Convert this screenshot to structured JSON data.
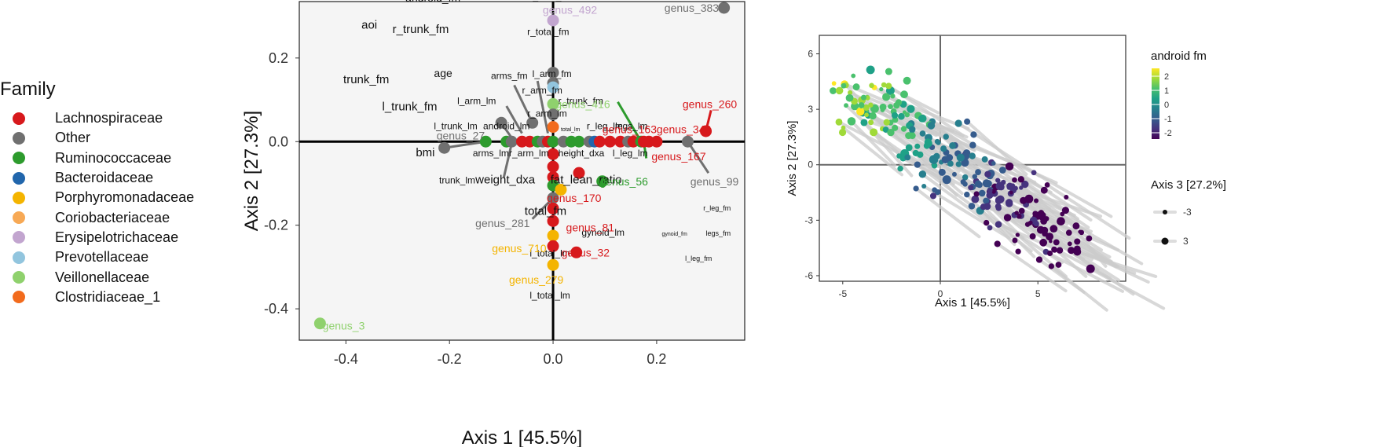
{
  "legend": {
    "title": "Family",
    "items": [
      {
        "label": "Lachnospiraceae",
        "color": "#d7191c"
      },
      {
        "label": "Other",
        "color": "#707070"
      },
      {
        "label": "Ruminococcaceae",
        "color": "#2d9b2d"
      },
      {
        "label": "Bacteroidaceae",
        "color": "#2166ac"
      },
      {
        "label": "Porphyromonadaceae",
        "color": "#f4b400"
      },
      {
        "label": "Coriobacteriaceae",
        "color": "#f7a955"
      },
      {
        "label": "Erysipelotrichaceae",
        "color": "#c2a5cf"
      },
      {
        "label": "Prevotellaceae",
        "color": "#92c5de"
      },
      {
        "label": "Veillonellaceae",
        "color": "#8fd16d"
      },
      {
        "label": "Clostridiaceae_1",
        "color": "#f26b1d"
      }
    ]
  },
  "chart_data": [
    {
      "type": "scatter",
      "xlabel": "Axis 1 [45.5%]",
      "ylabel": "Axis 2 [27.3%]",
      "xlim": [
        -0.49,
        0.37
      ],
      "ylim": [
        -0.475,
        0.335
      ],
      "xticks": [
        -0.4,
        -0.2,
        0.0,
        0.2
      ],
      "xtick_labels": [
        "-0.4",
        "-0.2",
        "0.0",
        "0.2"
      ],
      "yticks": [
        -0.4,
        -0.2,
        0.0,
        0.2
      ],
      "ytick_labels": [
        "-0.4",
        "-0.2",
        "0.0",
        "0.2"
      ],
      "grid": false,
      "points": [
        {
          "x": -0.45,
          "y": -0.435,
          "fam": "Veillonellaceae",
          "label": "genus_3",
          "lx": -0.445,
          "ly": -0.44
        },
        {
          "x": 0.33,
          "y": 0.32,
          "fam": "Other",
          "label": "genus_383",
          "lx": 0.215,
          "ly": 0.32
        },
        {
          "x": 0.0,
          "y": 0.29,
          "fam": "Erysipelotrichaceae",
          "label": "genus_492",
          "lx": -0.02,
          "ly": 0.315
        },
        {
          "x": 0.295,
          "y": 0.025,
          "fam": "Lachnospiraceae",
          "label": "genus_260",
          "lx": 0.25,
          "ly": 0.09
        },
        {
          "x": 0.26,
          "y": 0.0,
          "fam": "Other",
          "label": "genus_99",
          "lx": 0.265,
          "ly": -0.095
        },
        {
          "x": -0.21,
          "y": -0.015,
          "fam": "Other",
          "label": "genus_27",
          "lx": -0.225,
          "ly": 0.015
        },
        {
          "x": 0.0,
          "y": -0.135,
          "fam": "Other",
          "label": "genus_281",
          "lx": -0.15,
          "ly": -0.195
        },
        {
          "x": 0.0,
          "y": -0.295,
          "fam": "Porphyromonadaceae",
          "label": "genus_279",
          "lx": -0.085,
          "ly": -0.33
        },
        {
          "x": 0.0,
          "y": -0.225,
          "fam": "Porphyromonadaceae",
          "label": "genus_710",
          "lx": -0.118,
          "ly": -0.255
        },
        {
          "x": 0.045,
          "y": -0.265,
          "fam": "Lachnospiraceae",
          "label": "genus_32",
          "lx": 0.016,
          "ly": -0.265
        },
        {
          "x": 0.0,
          "y": -0.19,
          "fam": "Lachnospiraceae",
          "label": "genus_81",
          "lx": 0.025,
          "ly": -0.205
        },
        {
          "x": 0.05,
          "y": -0.075,
          "fam": "Lachnospiraceae",
          "label": "genus_170",
          "lx": -0.012,
          "ly": -0.135
        },
        {
          "x": 0.095,
          "y": -0.095,
          "fam": "Ruminococcaceae",
          "label": "genus_56",
          "lx": 0.09,
          "ly": -0.095
        },
        {
          "x": 0.185,
          "y": 0.0,
          "fam": "Lachnospiraceae",
          "label": "genus_167",
          "lx": 0.19,
          "ly": -0.035
        },
        {
          "x": 0.2,
          "y": 0.0,
          "fam": "Lachnospiraceae",
          "label": "genus_346",
          "lx": 0.2,
          "ly": 0.03
        },
        {
          "x": 0.11,
          "y": 0.0,
          "fam": "Lachnospiraceae",
          "label": "genus_163",
          "lx": 0.095,
          "ly": 0.03
        },
        {
          "x": 0.0,
          "y": 0.09,
          "fam": "Veillonellaceae",
          "label": "genus_416",
          "lx": 0.005,
          "ly": 0.09
        },
        {
          "x": -0.13,
          "y": 0.0,
          "fam": "Ruminococcaceae",
          "label": "",
          "lx": 0,
          "ly": 0
        },
        {
          "x": -0.1,
          "y": 0.045,
          "fam": "Other",
          "label": "",
          "lx": 0,
          "ly": 0
        },
        {
          "x": -0.09,
          "y": 0.0,
          "fam": "Ruminococcaceae",
          "label": "",
          "lx": 0,
          "ly": 0
        },
        {
          "x": -0.08,
          "y": 0.0,
          "fam": "Other",
          "label": "",
          "lx": 0,
          "ly": 0
        },
        {
          "x": -0.06,
          "y": 0.0,
          "fam": "Lachnospiraceae",
          "label": "",
          "lx": 0,
          "ly": 0
        },
        {
          "x": -0.045,
          "y": 0.0,
          "fam": "Lachnospiraceae",
          "label": "",
          "lx": 0,
          "ly": 0
        },
        {
          "x": -0.04,
          "y": 0.045,
          "fam": "Other",
          "label": "",
          "lx": 0,
          "ly": 0
        },
        {
          "x": -0.03,
          "y": 0.0,
          "fam": "Ruminococcaceae",
          "label": "",
          "lx": 0,
          "ly": 0
        },
        {
          "x": -0.02,
          "y": 0.0,
          "fam": "Other",
          "label": "",
          "lx": 0,
          "ly": 0
        },
        {
          "x": -0.01,
          "y": 0.0,
          "fam": "Lachnospiraceae",
          "label": "",
          "lx": 0,
          "ly": 0
        },
        {
          "x": 0.0,
          "y": 0.165,
          "fam": "Other",
          "label": "",
          "lx": 0,
          "ly": 0
        },
        {
          "x": 0.0,
          "y": 0.14,
          "fam": "Other",
          "label": "",
          "lx": 0,
          "ly": 0
        },
        {
          "x": 0.0,
          "y": 0.13,
          "fam": "Prevotellaceae",
          "label": "",
          "lx": 0,
          "ly": 0
        },
        {
          "x": 0.0,
          "y": 0.065,
          "fam": "Other",
          "label": "",
          "lx": 0,
          "ly": 0
        },
        {
          "x": 0.0,
          "y": 0.035,
          "fam": "Clostridiaceae_1",
          "label": "",
          "lx": 0,
          "ly": 0
        },
        {
          "x": 0.0,
          "y": 0.0,
          "fam": "Ruminococcaceae",
          "label": "",
          "lx": 0,
          "ly": 0
        },
        {
          "x": 0.0,
          "y": -0.03,
          "fam": "Lachnospiraceae",
          "label": "",
          "lx": 0,
          "ly": 0
        },
        {
          "x": 0.0,
          "y": -0.06,
          "fam": "Lachnospiraceae",
          "label": "",
          "lx": 0,
          "ly": 0
        },
        {
          "x": 0.0,
          "y": -0.085,
          "fam": "Lachnospiraceae",
          "label": "",
          "lx": 0,
          "ly": 0
        },
        {
          "x": 0.0,
          "y": -0.105,
          "fam": "Ruminococcaceae",
          "label": "",
          "lx": 0,
          "ly": 0
        },
        {
          "x": 0.0,
          "y": -0.16,
          "fam": "Lachnospiraceae",
          "label": "",
          "lx": 0,
          "ly": 0
        },
        {
          "x": 0.0,
          "y": -0.25,
          "fam": "Lachnospiraceae",
          "label": "",
          "lx": 0,
          "ly": 0
        },
        {
          "x": 0.015,
          "y": -0.115,
          "fam": "Porphyromonadaceae",
          "label": "",
          "lx": 0,
          "ly": 0
        },
        {
          "x": 0.02,
          "y": 0.0,
          "fam": "Other",
          "label": "",
          "lx": 0,
          "ly": 0
        },
        {
          "x": 0.035,
          "y": 0.0,
          "fam": "Ruminococcaceae",
          "label": "",
          "lx": 0,
          "ly": 0
        },
        {
          "x": 0.05,
          "y": 0.0,
          "fam": "Ruminococcaceae",
          "label": "",
          "lx": 0,
          "ly": 0
        },
        {
          "x": 0.07,
          "y": 0.0,
          "fam": "Other",
          "label": "",
          "lx": 0,
          "ly": 0
        },
        {
          "x": 0.08,
          "y": 0.0,
          "fam": "Bacteroidaceae",
          "label": "",
          "lx": 0,
          "ly": 0
        },
        {
          "x": 0.09,
          "y": 0.0,
          "fam": "Lachnospiraceae",
          "label": "",
          "lx": 0,
          "ly": 0
        },
        {
          "x": 0.13,
          "y": 0.0,
          "fam": "Lachnospiraceae",
          "label": "",
          "lx": 0,
          "ly": 0
        },
        {
          "x": 0.145,
          "y": 0.0,
          "fam": "Other",
          "label": "",
          "lx": 0,
          "ly": 0
        },
        {
          "x": 0.155,
          "y": 0.0,
          "fam": "Lachnospiraceae",
          "label": "",
          "lx": 0,
          "ly": 0
        },
        {
          "x": 0.17,
          "y": 0.0,
          "fam": "Ruminococcaceae",
          "label": "",
          "lx": 0,
          "ly": 0
        },
        {
          "x": 0.175,
          "y": 0.0,
          "fam": "Lachnospiraceae",
          "label": "",
          "lx": 0,
          "ly": 0
        }
      ],
      "segments": [
        {
          "x1": -0.45,
          "y1": -0.435,
          "x2": -0.45,
          "y2": -0.435,
          "color": "#8fd16d"
        },
        {
          "x1": 0.295,
          "y1": 0.025,
          "x2": 0.305,
          "y2": 0.075,
          "color": "#d7191c"
        },
        {
          "x1": 0.26,
          "y1": 0.0,
          "x2": 0.3,
          "y2": -0.075,
          "color": "#707070"
        },
        {
          "x1": 0.185,
          "y1": 0.0,
          "x2": 0.21,
          "y2": -0.005,
          "color": "#d7191c"
        },
        {
          "x1": 0.17,
          "y1": 0.0,
          "x2": 0.125,
          "y2": 0.095,
          "color": "#2d9b2d"
        },
        {
          "x1": 0.175,
          "y1": 0.0,
          "x2": 0.18,
          "y2": -0.04,
          "color": "#2d9b2d"
        },
        {
          "x1": -0.21,
          "y1": -0.015,
          "x2": -0.13,
          "y2": 0.0,
          "color": "#707070"
        },
        {
          "x1": 0.0,
          "y1": -0.135,
          "x2": -0.04,
          "y2": -0.185,
          "color": "#707070"
        },
        {
          "x1": -0.1,
          "y1": 0.045,
          "x2": -0.075,
          "y2": 0.0,
          "color": "#707070"
        },
        {
          "x1": -0.075,
          "y1": 0.135,
          "x2": -0.04,
          "y2": 0.045,
          "color": "#707070"
        },
        {
          "x1": -0.03,
          "y1": 0.145,
          "x2": -0.01,
          "y2": 0.02,
          "color": "#707070"
        },
        {
          "x1": -0.09,
          "y1": 0.085,
          "x2": -0.06,
          "y2": 0.02,
          "color": "#707070"
        },
        {
          "x1": -0.08,
          "y1": -0.005,
          "x2": -0.095,
          "y2": -0.085,
          "color": "#707070"
        }
      ],
      "vectors": [
        {
          "label": "android_fm",
          "x": -0.285,
          "y": 0.335,
          "size": 14
        },
        {
          "label": "aoi",
          "x": -0.37,
          "y": 0.27,
          "size": 15
        },
        {
          "label": "r_trunk_fm",
          "x": -0.31,
          "y": 0.26,
          "size": 15
        },
        {
          "label": "r_total_fm",
          "x": -0.045,
          "y": 0.34,
          "size": 12
        },
        {
          "label": "r_total_fm",
          "x": -0.05,
          "y": 0.255,
          "size": 12
        },
        {
          "label": "age",
          "x": -0.23,
          "y": 0.155,
          "size": 14
        },
        {
          "label": "trunk_fm",
          "x": -0.405,
          "y": 0.14,
          "size": 15
        },
        {
          "label": "arms_fm",
          "x": -0.12,
          "y": 0.15,
          "size": 12
        },
        {
          "label": "l_arm_fm",
          "x": -0.04,
          "y": 0.155,
          "size": 12
        },
        {
          "label": "l_arm_lm",
          "x": -0.185,
          "y": 0.09,
          "size": 12
        },
        {
          "label": "r_arm_fm",
          "x": -0.06,
          "y": 0.115,
          "size": 12
        },
        {
          "label": "l_trunk_fm",
          "x": -0.33,
          "y": 0.075,
          "size": 15
        },
        {
          "label": "r_trunk_fm",
          "x": 0.01,
          "y": 0.09,
          "size": 12
        },
        {
          "label": "r_arm_lm",
          "x": -0.05,
          "y": 0.06,
          "size": 12
        },
        {
          "label": "l_trunk_lm",
          "x": -0.23,
          "y": 0.03,
          "size": 12
        },
        {
          "label": "android_lm",
          "x": -0.135,
          "y": 0.03,
          "size": 12
        },
        {
          "label": "total_lm",
          "x": 0.015,
          "y": 0.025,
          "size": 7
        },
        {
          "label": "r_leg_lm",
          "x": 0.065,
          "y": 0.03,
          "size": 12
        },
        {
          "label": "legs_lm",
          "x": 0.12,
          "y": 0.03,
          "size": 12
        },
        {
          "label": "bmi",
          "x": -0.265,
          "y": -0.035,
          "size": 15
        },
        {
          "label": "arms_lm",
          "x": -0.155,
          "y": -0.035,
          "size": 12
        },
        {
          "label": "r_arm_lm",
          "x": -0.085,
          "y": -0.035,
          "size": 12
        },
        {
          "label": "height_dxa",
          "x": 0.01,
          "y": -0.035,
          "size": 12
        },
        {
          "label": "l_leg_lm",
          "x": 0.115,
          "y": -0.035,
          "size": 12
        },
        {
          "label": "trunk_lm",
          "x": -0.22,
          "y": -0.1,
          "size": 12
        },
        {
          "label": "weight_dxa",
          "x": -0.15,
          "y": -0.1,
          "size": 15
        },
        {
          "label": "fat_lean_ratio",
          "x": -0.005,
          "y": -0.1,
          "size": 15
        },
        {
          "label": "total_fm",
          "x": -0.055,
          "y": -0.175,
          "size": 15
        },
        {
          "label": "gynoid_lm",
          "x": 0.055,
          "y": -0.225,
          "size": 12
        },
        {
          "label": "l_total_lm",
          "x": -0.045,
          "y": -0.275,
          "size": 12
        },
        {
          "label": "l_total_lm",
          "x": -0.045,
          "y": -0.375,
          "size": 12
        },
        {
          "label": "r_leg_fm",
          "x": 0.29,
          "y": -0.165,
          "size": 9
        },
        {
          "label": "legs_fm",
          "x": 0.295,
          "y": -0.225,
          "size": 9
        },
        {
          "label": "gynoid_fm",
          "x": 0.21,
          "y": -0.225,
          "size": 7
        },
        {
          "label": "l_leg_fm",
          "x": 0.255,
          "y": -0.285,
          "size": 9
        }
      ]
    },
    {
      "type": "scatter",
      "xlabel": "Axis 1 [45.5%]",
      "ylabel": "Axis 2 [27.3%]",
      "xlim": [
        -6.2,
        9.5
      ],
      "ylim": [
        -6.3,
        7.0
      ],
      "xticks": [
        -5,
        0,
        5
      ],
      "xtick_labels": [
        "-5",
        "0",
        "5"
      ],
      "yticks": [
        6,
        3,
        0,
        -3,
        -6
      ],
      "ytick_labels": [
        "6",
        "3",
        "0",
        "-3",
        "-6"
      ],
      "grid": false,
      "color_legend": {
        "title": "android fm",
        "ticks": [
          2,
          1,
          0,
          -1,
          -2
        ],
        "tick_labels": [
          "2",
          "1",
          "0",
          "-1",
          "-2"
        ]
      },
      "size_legend": {
        "title": "Axis 3 [27.2%]",
        "values": [
          -3,
          3
        ],
        "labels": [
          "-3",
          "3"
        ]
      },
      "n_points": 260,
      "pattern": "negative correlation; points spread from upper-left (x≈-5, y≈5) to lower-right (x≈8, y≈-5); grey segments link points to offset positions"
    }
  ]
}
